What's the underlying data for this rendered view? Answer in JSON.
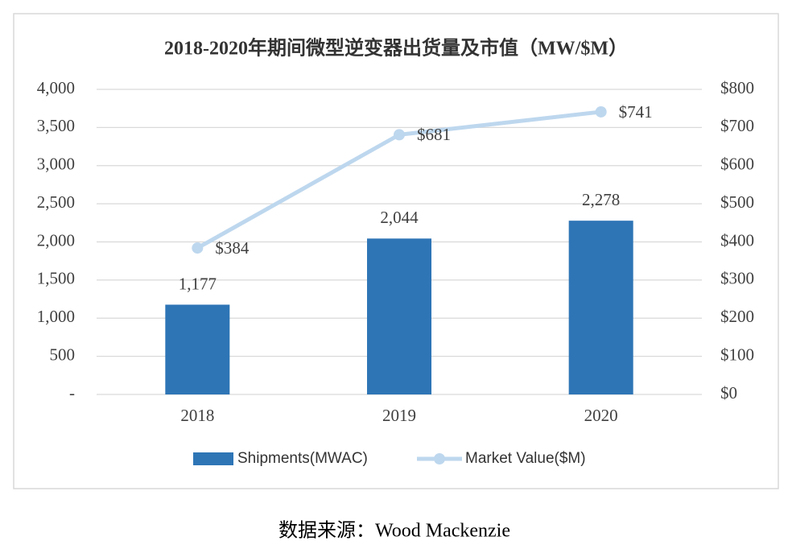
{
  "chart_data": {
    "type": "bar",
    "title": "2018-2020年期间微型逆变器出货量及市值（MW/$M）",
    "categories": [
      "2018",
      "2019",
      "2020"
    ],
    "series": [
      {
        "name": "Shipments(MWAC)",
        "type": "bar",
        "color": "#2e75b6",
        "values": [
          1177,
          2044,
          2278
        ],
        "value_labels": [
          "1,177",
          "2,044",
          "2,278"
        ]
      },
      {
        "name": "Market Value($M)",
        "type": "line",
        "axis": "y2",
        "color": "#bdd7ee",
        "values": [
          384,
          681,
          741
        ],
        "value_labels": [
          "$384",
          "$681",
          "$741"
        ]
      }
    ],
    "ylim": [
      0,
      4000
    ],
    "yticks": [
      {
        "value": 0,
        "label": "-"
      },
      500,
      {
        "value": 1000,
        "label": "1,000"
      },
      {
        "value": 1500,
        "label": "1,500"
      },
      {
        "value": 2000,
        "label": "2,000"
      },
      {
        "value": 2500,
        "label": "2,500"
      },
      {
        "value": 3000,
        "label": "3,000"
      },
      {
        "value": 3500,
        "label": "3,500"
      },
      {
        "value": 4000,
        "label": "4,000"
      }
    ],
    "y2lim": [
      0,
      800
    ],
    "y2ticks": [
      {
        "value": 0,
        "label": "$0"
      },
      {
        "value": 100,
        "label": "$100"
      },
      {
        "value": 200,
        "label": "$200"
      },
      {
        "value": 300,
        "label": "$300"
      },
      {
        "value": 400,
        "label": "$400"
      },
      {
        "value": 500,
        "label": "$500"
      },
      {
        "value": 600,
        "label": "$600"
      },
      {
        "value": 700,
        "label": "$700"
      },
      {
        "value": 800,
        "label": "$800"
      }
    ],
    "grid": true,
    "legend": "bottom",
    "source": "数据来源：Wood Mackenzie"
  }
}
